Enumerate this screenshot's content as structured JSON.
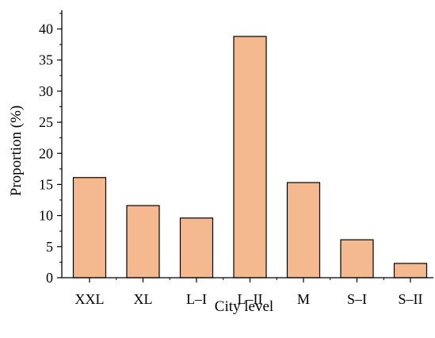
{
  "chart_data": {
    "type": "bar",
    "categories": [
      "XXL",
      "XL",
      "L–I",
      "L–II",
      "M",
      "S–I",
      "S–II"
    ],
    "values": [
      16.1,
      11.6,
      9.6,
      38.8,
      15.3,
      6.1,
      2.3
    ],
    "xlabel": "City level",
    "ylabel": "Proportion (%)",
    "ylim": [
      0,
      43
    ],
    "yticks": [
      0,
      5,
      10,
      15,
      20,
      25,
      30,
      35,
      40
    ],
    "grid": false,
    "legend": "none",
    "bar_color": "#F5B990",
    "bar_edge_color": "#000000",
    "axis_color": "#000000"
  }
}
